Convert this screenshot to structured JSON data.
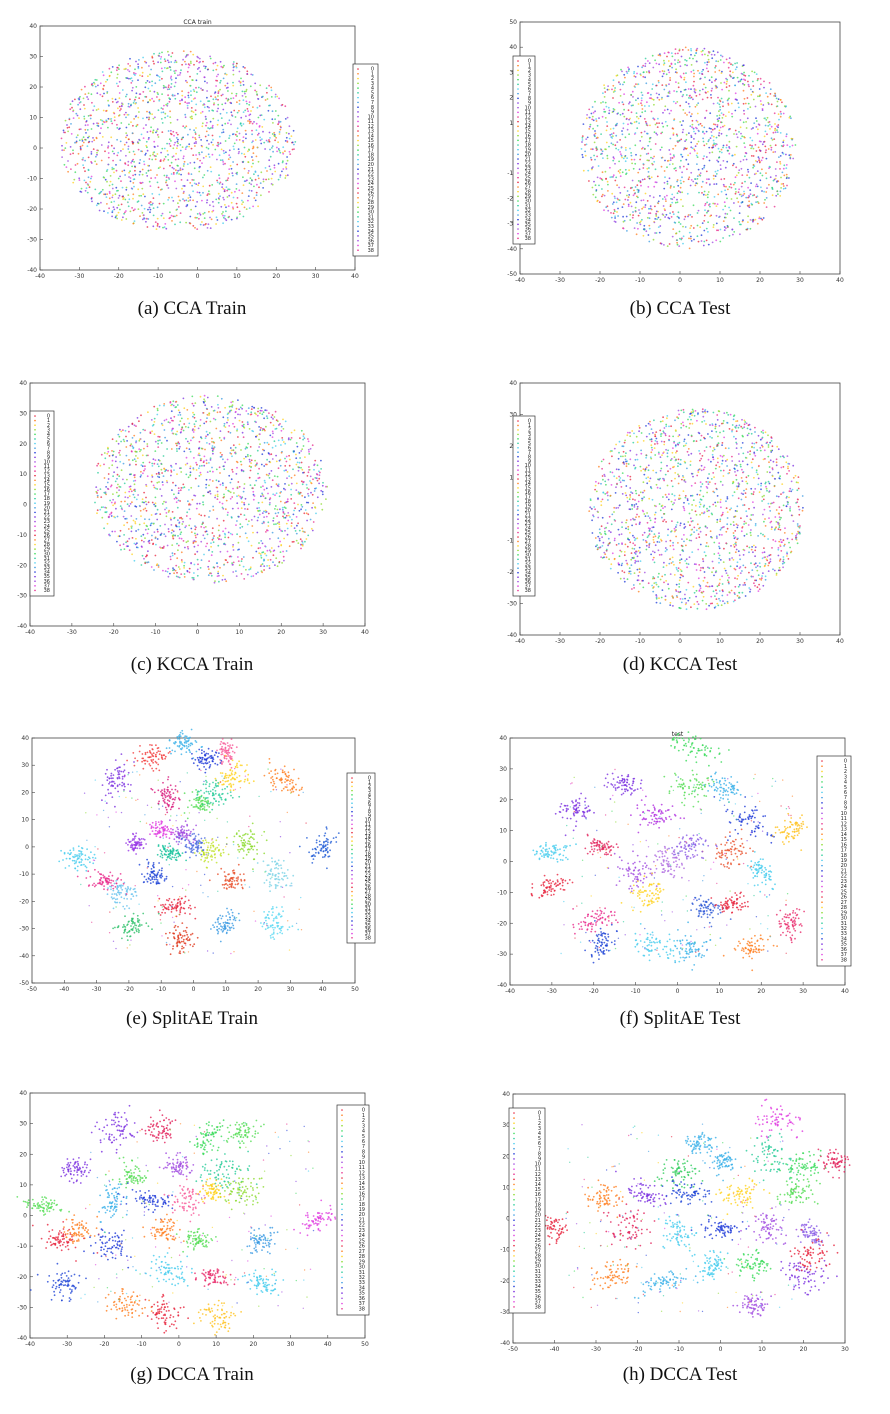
{
  "figure": {
    "captions": [
      "(a) CCA Train",
      "(b) CCA Test",
      "(c) KCCA Train",
      "(d) KCCA Test",
      "(e) SplitAE Train",
      "(f) SplitAE Test",
      "(g) DCCA Train",
      "(h) DCCA Test"
    ]
  },
  "chart_data": [
    {
      "type": "scatter",
      "title": "CCA train",
      "caption": "(a) CCA Train",
      "xlim": [
        -40,
        40
      ],
      "ylim": [
        -40,
        40
      ],
      "xticks": [
        -40,
        -30,
        -20,
        -10,
        0,
        10,
        20,
        30,
        40
      ],
      "yticks": [
        -40,
        -30,
        -20,
        -10,
        0,
        10,
        20,
        30,
        40
      ],
      "legend": {
        "position": "right",
        "entries": [
          "0",
          "1",
          "2",
          "3",
          "4",
          "5",
          "6",
          "7",
          "8",
          "9",
          "10",
          "11",
          "12",
          "13",
          "14",
          "15",
          "16",
          "17",
          "18",
          "19",
          "20",
          "21",
          "22",
          "23",
          "24",
          "25",
          "26",
          "27",
          "28",
          "29",
          "30",
          "31",
          "32",
          "33",
          "34",
          "35",
          "36",
          "37",
          "38"
        ]
      },
      "distribution": "mixed",
      "cloud": {
        "cx": -5,
        "cy": 2,
        "rx": 30,
        "ry": 30
      }
    },
    {
      "type": "scatter",
      "title": "",
      "caption": "(b) CCA Test",
      "xlim": [
        -40,
        40
      ],
      "ylim": [
        -50,
        50
      ],
      "xticks": [
        -40,
        -30,
        -20,
        -10,
        0,
        10,
        20,
        30,
        40
      ],
      "yticks": [
        -50,
        -40,
        -30,
        -20,
        -10,
        0,
        10,
        20,
        30,
        40,
        50
      ],
      "legend": {
        "position": "left",
        "entries": [
          "0",
          "1",
          "2",
          "3",
          "4",
          "5",
          "6",
          "7",
          "8",
          "9",
          "10",
          "11",
          "12",
          "13",
          "14",
          "15",
          "16",
          "17",
          "18",
          "19",
          "20",
          "21",
          "22",
          "23",
          "24",
          "25",
          "26",
          "27",
          "28",
          "29",
          "30",
          "31",
          "32",
          "33",
          "34",
          "35",
          "36",
          "37",
          "38"
        ]
      },
      "distribution": "mixed",
      "cloud": {
        "cx": 2,
        "cy": 0,
        "rx": 27,
        "ry": 40
      }
    },
    {
      "type": "scatter",
      "title": "",
      "caption": "(c) KCCA Train",
      "xlim": [
        -40,
        40
      ],
      "ylim": [
        -40,
        40
      ],
      "xticks": [
        -40,
        -30,
        -20,
        -10,
        0,
        10,
        20,
        30,
        40
      ],
      "yticks": [
        -40,
        -30,
        -20,
        -10,
        0,
        10,
        20,
        30,
        40
      ],
      "legend": {
        "position": "left",
        "entries": [
          "0",
          "1",
          "2",
          "3",
          "4",
          "5",
          "6",
          "7",
          "8",
          "9",
          "10",
          "11",
          "12",
          "13",
          "14",
          "15",
          "16",
          "17",
          "18",
          "19",
          "20",
          "21",
          "22",
          "23",
          "24",
          "25",
          "26",
          "27",
          "28",
          "29",
          "30",
          "31",
          "32",
          "33",
          "34",
          "35",
          "36",
          "37",
          "38"
        ]
      },
      "distribution": "mixed",
      "cloud": {
        "cx": 3,
        "cy": 5,
        "rx": 28,
        "ry": 31
      }
    },
    {
      "type": "scatter",
      "title": "",
      "caption": "(d) KCCA Test",
      "xlim": [
        -40,
        40
      ],
      "ylim": [
        -40,
        40
      ],
      "xticks": [
        -40,
        -30,
        -20,
        -10,
        0,
        10,
        20,
        30,
        40
      ],
      "yticks": [
        -40,
        -30,
        -20,
        -10,
        0,
        10,
        20,
        30,
        40
      ],
      "legend": {
        "position": "left",
        "entries": [
          "0",
          "1",
          "2",
          "3",
          "4",
          "5",
          "6",
          "7",
          "8",
          "9",
          "10",
          "11",
          "12",
          "13",
          "14",
          "15",
          "16",
          "17",
          "18",
          "19",
          "20",
          "21",
          "22",
          "23",
          "24",
          "25",
          "26",
          "27",
          "28",
          "29",
          "30",
          "31",
          "32",
          "33",
          "34",
          "35",
          "36",
          "37",
          "38"
        ]
      },
      "distribution": "mixed",
      "cloud": {
        "cx": 4,
        "cy": 0,
        "rx": 27,
        "ry": 32
      }
    },
    {
      "type": "scatter",
      "title": "",
      "caption": "(e) SplitAE Train",
      "xlim": [
        -50,
        50
      ],
      "ylim": [
        -50,
        40
      ],
      "xticks": [
        -50,
        -40,
        -30,
        -20,
        -10,
        0,
        10,
        20,
        30,
        40,
        50
      ],
      "yticks": [
        -50,
        -40,
        -30,
        -20,
        -10,
        0,
        10,
        20,
        30,
        40
      ],
      "legend": {
        "position": "right",
        "entries": [
          "0",
          "1",
          "2",
          "3",
          "4",
          "5",
          "6",
          "7",
          "8",
          "9",
          "10",
          "11",
          "12",
          "13",
          "14",
          "15",
          "16",
          "17",
          "18",
          "19",
          "20",
          "21",
          "22",
          "23",
          "24",
          "25",
          "26",
          "27",
          "28",
          "29",
          "30",
          "31",
          "32",
          "33",
          "34",
          "35",
          "36",
          "37",
          "38"
        ]
      },
      "distribution": "clustered",
      "clusters": [
        [
          -24,
          25,
          "#7b2fe0"
        ],
        [
          -13,
          33,
          "#f23c3c"
        ],
        [
          -3,
          38,
          "#3ab0e8"
        ],
        [
          10,
          35,
          "#f75c9a"
        ],
        [
          4,
          32,
          "#1e3ad8"
        ],
        [
          12,
          26,
          "#ffd21e"
        ],
        [
          28,
          25,
          "#ff7e1f"
        ],
        [
          -8,
          18,
          "#d8187c"
        ],
        [
          2,
          16,
          "#55dd55"
        ],
        [
          7,
          20,
          "#28cc9a"
        ],
        [
          -18,
          1,
          "#9a3be6"
        ],
        [
          -12,
          -10,
          "#1e44d6"
        ],
        [
          -22,
          -17,
          "#66c2ee"
        ],
        [
          -36,
          -4,
          "#44ccee"
        ],
        [
          -28,
          -12,
          "#e82c8c"
        ],
        [
          -19,
          -29,
          "#2ec06a"
        ],
        [
          -5,
          -22,
          "#e7243d"
        ],
        [
          -4,
          -34,
          "#e0391e"
        ],
        [
          12,
          -12,
          "#e8522e"
        ],
        [
          10,
          -28,
          "#3a9ae2"
        ],
        [
          26,
          -10,
          "#7dd3e6"
        ],
        [
          40,
          0,
          "#1e5ad6"
        ],
        [
          25,
          -28,
          "#5ad8f2"
        ],
        [
          17,
          1,
          "#8cdb2e"
        ],
        [
          5,
          -2,
          "#c0e22a"
        ],
        [
          -7,
          -2,
          "#11c09a"
        ],
        [
          -3,
          5,
          "#a04ae0"
        ],
        [
          0,
          0,
          "#4a6ae0"
        ],
        [
          -10,
          6,
          "#e03ce0"
        ]
      ]
    },
    {
      "type": "scatter",
      "title": "test",
      "caption": "(f) SplitAE Test",
      "xlim": [
        -40,
        40
      ],
      "ylim": [
        -40,
        40
      ],
      "xticks": [
        -40,
        -30,
        -20,
        -10,
        0,
        10,
        20,
        30,
        40
      ],
      "yticks": [
        -40,
        -30,
        -20,
        -10,
        0,
        10,
        20,
        30,
        40
      ],
      "legend": {
        "position": "right",
        "entries": [
          "0",
          "1",
          "2",
          "3",
          "4",
          "5",
          "6",
          "7",
          "8",
          "9",
          "10",
          "11",
          "12",
          "13",
          "14",
          "15",
          "16",
          "17",
          "18",
          "19",
          "20",
          "21",
          "22",
          "23",
          "24",
          "25",
          "26",
          "27",
          "28",
          "29",
          "30",
          "31",
          "32",
          "33",
          "34",
          "35",
          "36",
          "37",
          "38"
        ]
      },
      "distribution": "clustered",
      "clusters": [
        [
          3,
          37,
          "#3adb5a"
        ],
        [
          -13,
          25,
          "#7b2fe0"
        ],
        [
          -24,
          17,
          "#7b2fe0"
        ],
        [
          -5,
          15,
          "#b02fe0"
        ],
        [
          3,
          24,
          "#55dd55"
        ],
        [
          11,
          24,
          "#3ab0e8"
        ],
        [
          17,
          13,
          "#1e3ad8"
        ],
        [
          27,
          10,
          "#ffc21e"
        ],
        [
          -30,
          3,
          "#44ccee"
        ],
        [
          -18,
          5,
          "#e2245c"
        ],
        [
          -30,
          -8,
          "#e7243d"
        ],
        [
          -20,
          -19,
          "#e82c8c"
        ],
        [
          -18,
          -27,
          "#1e44d6"
        ],
        [
          -5,
          -27,
          "#44ccee"
        ],
        [
          4,
          -28,
          "#3ab0e8"
        ],
        [
          18,
          -28,
          "#ff7e1f"
        ],
        [
          27,
          -20,
          "#e82c6c"
        ],
        [
          20,
          -4,
          "#44ccee"
        ],
        [
          12,
          3,
          "#e8522e"
        ],
        [
          3,
          5,
          "#8a5ce6"
        ],
        [
          -10,
          -3,
          "#a04ae0"
        ],
        [
          7,
          -15,
          "#2e5ad6"
        ],
        [
          13,
          -14,
          "#e7243d"
        ],
        [
          -7,
          -10,
          "#ffd21e"
        ],
        [
          -2,
          0,
          "#ae6ae0"
        ]
      ]
    },
    {
      "type": "scatter",
      "title": "",
      "caption": "(g) DCCA Train",
      "xlim": [
        -40,
        50
      ],
      "ylim": [
        -40,
        40
      ],
      "xticks": [
        -40,
        -30,
        -20,
        -10,
        0,
        10,
        20,
        30,
        40,
        50
      ],
      "yticks": [
        -40,
        -30,
        -20,
        -10,
        0,
        10,
        20,
        30,
        40
      ],
      "legend": {
        "position": "right",
        "entries": [
          "0",
          "1",
          "2",
          "3",
          "4",
          "5",
          "6",
          "7",
          "8",
          "9",
          "10",
          "11",
          "12",
          "13",
          "14",
          "15",
          "16",
          "17",
          "18",
          "19",
          "20",
          "21",
          "22",
          "23",
          "24",
          "25",
          "26",
          "27",
          "28",
          "29",
          "30",
          "31",
          "32",
          "33",
          "34",
          "35",
          "36",
          "37",
          "38"
        ]
      },
      "distribution": "clustered",
      "clusters": [
        [
          -17,
          28,
          "#7b2fe0"
        ],
        [
          -5,
          28,
          "#e2245c"
        ],
        [
          8,
          25,
          "#3adb5a"
        ],
        [
          17,
          27,
          "#55dd55"
        ],
        [
          -28,
          15,
          "#7b2fe0"
        ],
        [
          -13,
          13,
          "#55dd55"
        ],
        [
          0,
          16,
          "#a04ae0"
        ],
        [
          12,
          14,
          "#28cc9a"
        ],
        [
          -36,
          3,
          "#55dd55"
        ],
        [
          -18,
          4,
          "#3ab0e8"
        ],
        [
          -8,
          5,
          "#1e3ad8"
        ],
        [
          2,
          5,
          "#f75c9a"
        ],
        [
          9,
          8,
          "#ffd21e"
        ],
        [
          17,
          8,
          "#8cdb2e"
        ],
        [
          -27,
          -5,
          "#ff7e1f"
        ],
        [
          -32,
          -8,
          "#e7243d"
        ],
        [
          -18,
          -10,
          "#1e3ad8"
        ],
        [
          -4,
          -5,
          "#ff7e1f"
        ],
        [
          5,
          -8,
          "#55dd55"
        ],
        [
          22,
          -8,
          "#3a9ae2"
        ],
        [
          38,
          -1,
          "#e03ce0"
        ],
        [
          -3,
          -18,
          "#44ccee"
        ],
        [
          9,
          -20,
          "#e82c6c"
        ],
        [
          22,
          -22,
          "#44ccee"
        ],
        [
          -31,
          -22,
          "#1e44d6"
        ],
        [
          -14,
          -29,
          "#ff7e1f"
        ],
        [
          -4,
          -32,
          "#e7243d"
        ],
        [
          10,
          -33,
          "#ffc21e"
        ]
      ]
    },
    {
      "type": "scatter",
      "title": "",
      "caption": "(h) DCCA Test",
      "xlim": [
        -50,
        30
      ],
      "ylim": [
        -40,
        40
      ],
      "xticks": [
        -50,
        -40,
        -30,
        -20,
        -10,
        0,
        10,
        20,
        30
      ],
      "yticks": [
        -40,
        -30,
        -20,
        -10,
        0,
        10,
        20,
        30,
        40
      ],
      "legend": {
        "position": "left",
        "entries": [
          "0",
          "1",
          "2",
          "3",
          "4",
          "5",
          "6",
          "7",
          "8",
          "9",
          "10",
          "11",
          "12",
          "13",
          "14",
          "15",
          "16",
          "17",
          "18",
          "19",
          "20",
          "21",
          "22",
          "23",
          "24",
          "25",
          "26",
          "27",
          "28",
          "29",
          "30",
          "31",
          "32",
          "33",
          "34",
          "35",
          "36",
          "37",
          "38"
        ]
      },
      "distribution": "clustered",
      "clusters": [
        [
          13,
          32,
          "#e03ce0"
        ],
        [
          -5,
          24,
          "#3ab0e8"
        ],
        [
          1,
          18,
          "#3ab0e8"
        ],
        [
          12,
          20,
          "#28cc9a"
        ],
        [
          20,
          17,
          "#3adb5a"
        ],
        [
          28,
          18,
          "#e2245c"
        ],
        [
          -10,
          15,
          "#2ecc5a"
        ],
        [
          -28,
          7,
          "#ff7e1f"
        ],
        [
          -18,
          8,
          "#7b2fe0"
        ],
        [
          -8,
          8,
          "#1e44d6"
        ],
        [
          5,
          8,
          "#ffd21e"
        ],
        [
          18,
          8,
          "#55dd55"
        ],
        [
          -40,
          -3,
          "#e7243d"
        ],
        [
          -22,
          -3,
          "#e2245c"
        ],
        [
          -10,
          -5,
          "#44ccee"
        ],
        [
          0,
          -3,
          "#1e3ad8"
        ],
        [
          12,
          -3,
          "#a04ae0"
        ],
        [
          22,
          -5,
          "#8a5ce6"
        ],
        [
          -26,
          -18,
          "#ff7e1f"
        ],
        [
          -13,
          -20,
          "#3ab0e8"
        ],
        [
          -2,
          -15,
          "#44ccee"
        ],
        [
          8,
          -15,
          "#3adb5a"
        ],
        [
          20,
          -18,
          "#7b2fe0"
        ],
        [
          8,
          -28,
          "#a04ae0"
        ],
        [
          22,
          -12,
          "#e7243d"
        ]
      ]
    }
  ],
  "palette": [
    "#e7243d",
    "#ff7e1f",
    "#ffd21e",
    "#8cdb2e",
    "#3adb5a",
    "#28cc9a",
    "#44ccee",
    "#3a9ae2",
    "#1e3ad8",
    "#7b2fe0",
    "#a04ae0",
    "#e03ce0",
    "#e82c8c"
  ]
}
